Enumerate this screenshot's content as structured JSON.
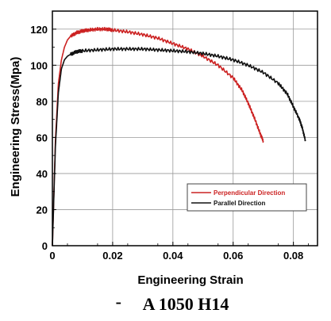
{
  "chart_data": {
    "type": "line",
    "xlabel": "Engineering Strain",
    "ylabel": "Engineering Stress(Mpa)",
    "xlim": [
      0,
      0.088
    ],
    "ylim": [
      0,
      130
    ],
    "xticks": [
      0,
      0.02,
      0.04,
      0.06,
      0.08
    ],
    "xtick_labels": [
      "0",
      "0.02",
      "0.04",
      "0.06",
      "0.08"
    ],
    "yticks": [
      0,
      20,
      40,
      60,
      80,
      100,
      120
    ],
    "ytick_labels": [
      "0",
      "20",
      "40",
      "60",
      "80",
      "100",
      "120"
    ],
    "grid": true,
    "legend_position": "bottom-right",
    "caption": "A 1050 H14",
    "series": [
      {
        "name": "Perpendicular Direction",
        "color": "#cc2222",
        "x": [
          0,
          0.001,
          0.002,
          0.003,
          0.004,
          0.005,
          0.006,
          0.008,
          0.01,
          0.012,
          0.015,
          0.018,
          0.02,
          0.025,
          0.03,
          0.035,
          0.04,
          0.045,
          0.05,
          0.055,
          0.06,
          0.063,
          0.065,
          0.067,
          0.069,
          0.07
        ],
        "y": [
          0,
          58,
          90,
          103,
          110,
          114,
          116,
          118,
          119,
          119.5,
          120,
          120,
          119.5,
          118.5,
          117,
          115,
          112,
          109,
          105,
          100,
          93,
          86,
          79,
          71,
          62,
          58
        ]
      },
      {
        "name": "Parallel Direction",
        "color": "#111111",
        "x": [
          0,
          0.001,
          0.002,
          0.003,
          0.004,
          0.005,
          0.006,
          0.008,
          0.01,
          0.015,
          0.02,
          0.025,
          0.03,
          0.035,
          0.04,
          0.045,
          0.05,
          0.055,
          0.06,
          0.065,
          0.07,
          0.075,
          0.078,
          0.08,
          0.082,
          0.083,
          0.084
        ],
        "y": [
          0,
          55,
          85,
          98,
          103,
          105,
          106,
          107.5,
          108,
          108.5,
          109,
          109,
          109,
          108.5,
          108,
          107.5,
          106.5,
          105,
          103,
          100,
          96,
          90,
          84,
          77,
          70,
          65,
          58
        ]
      }
    ]
  }
}
